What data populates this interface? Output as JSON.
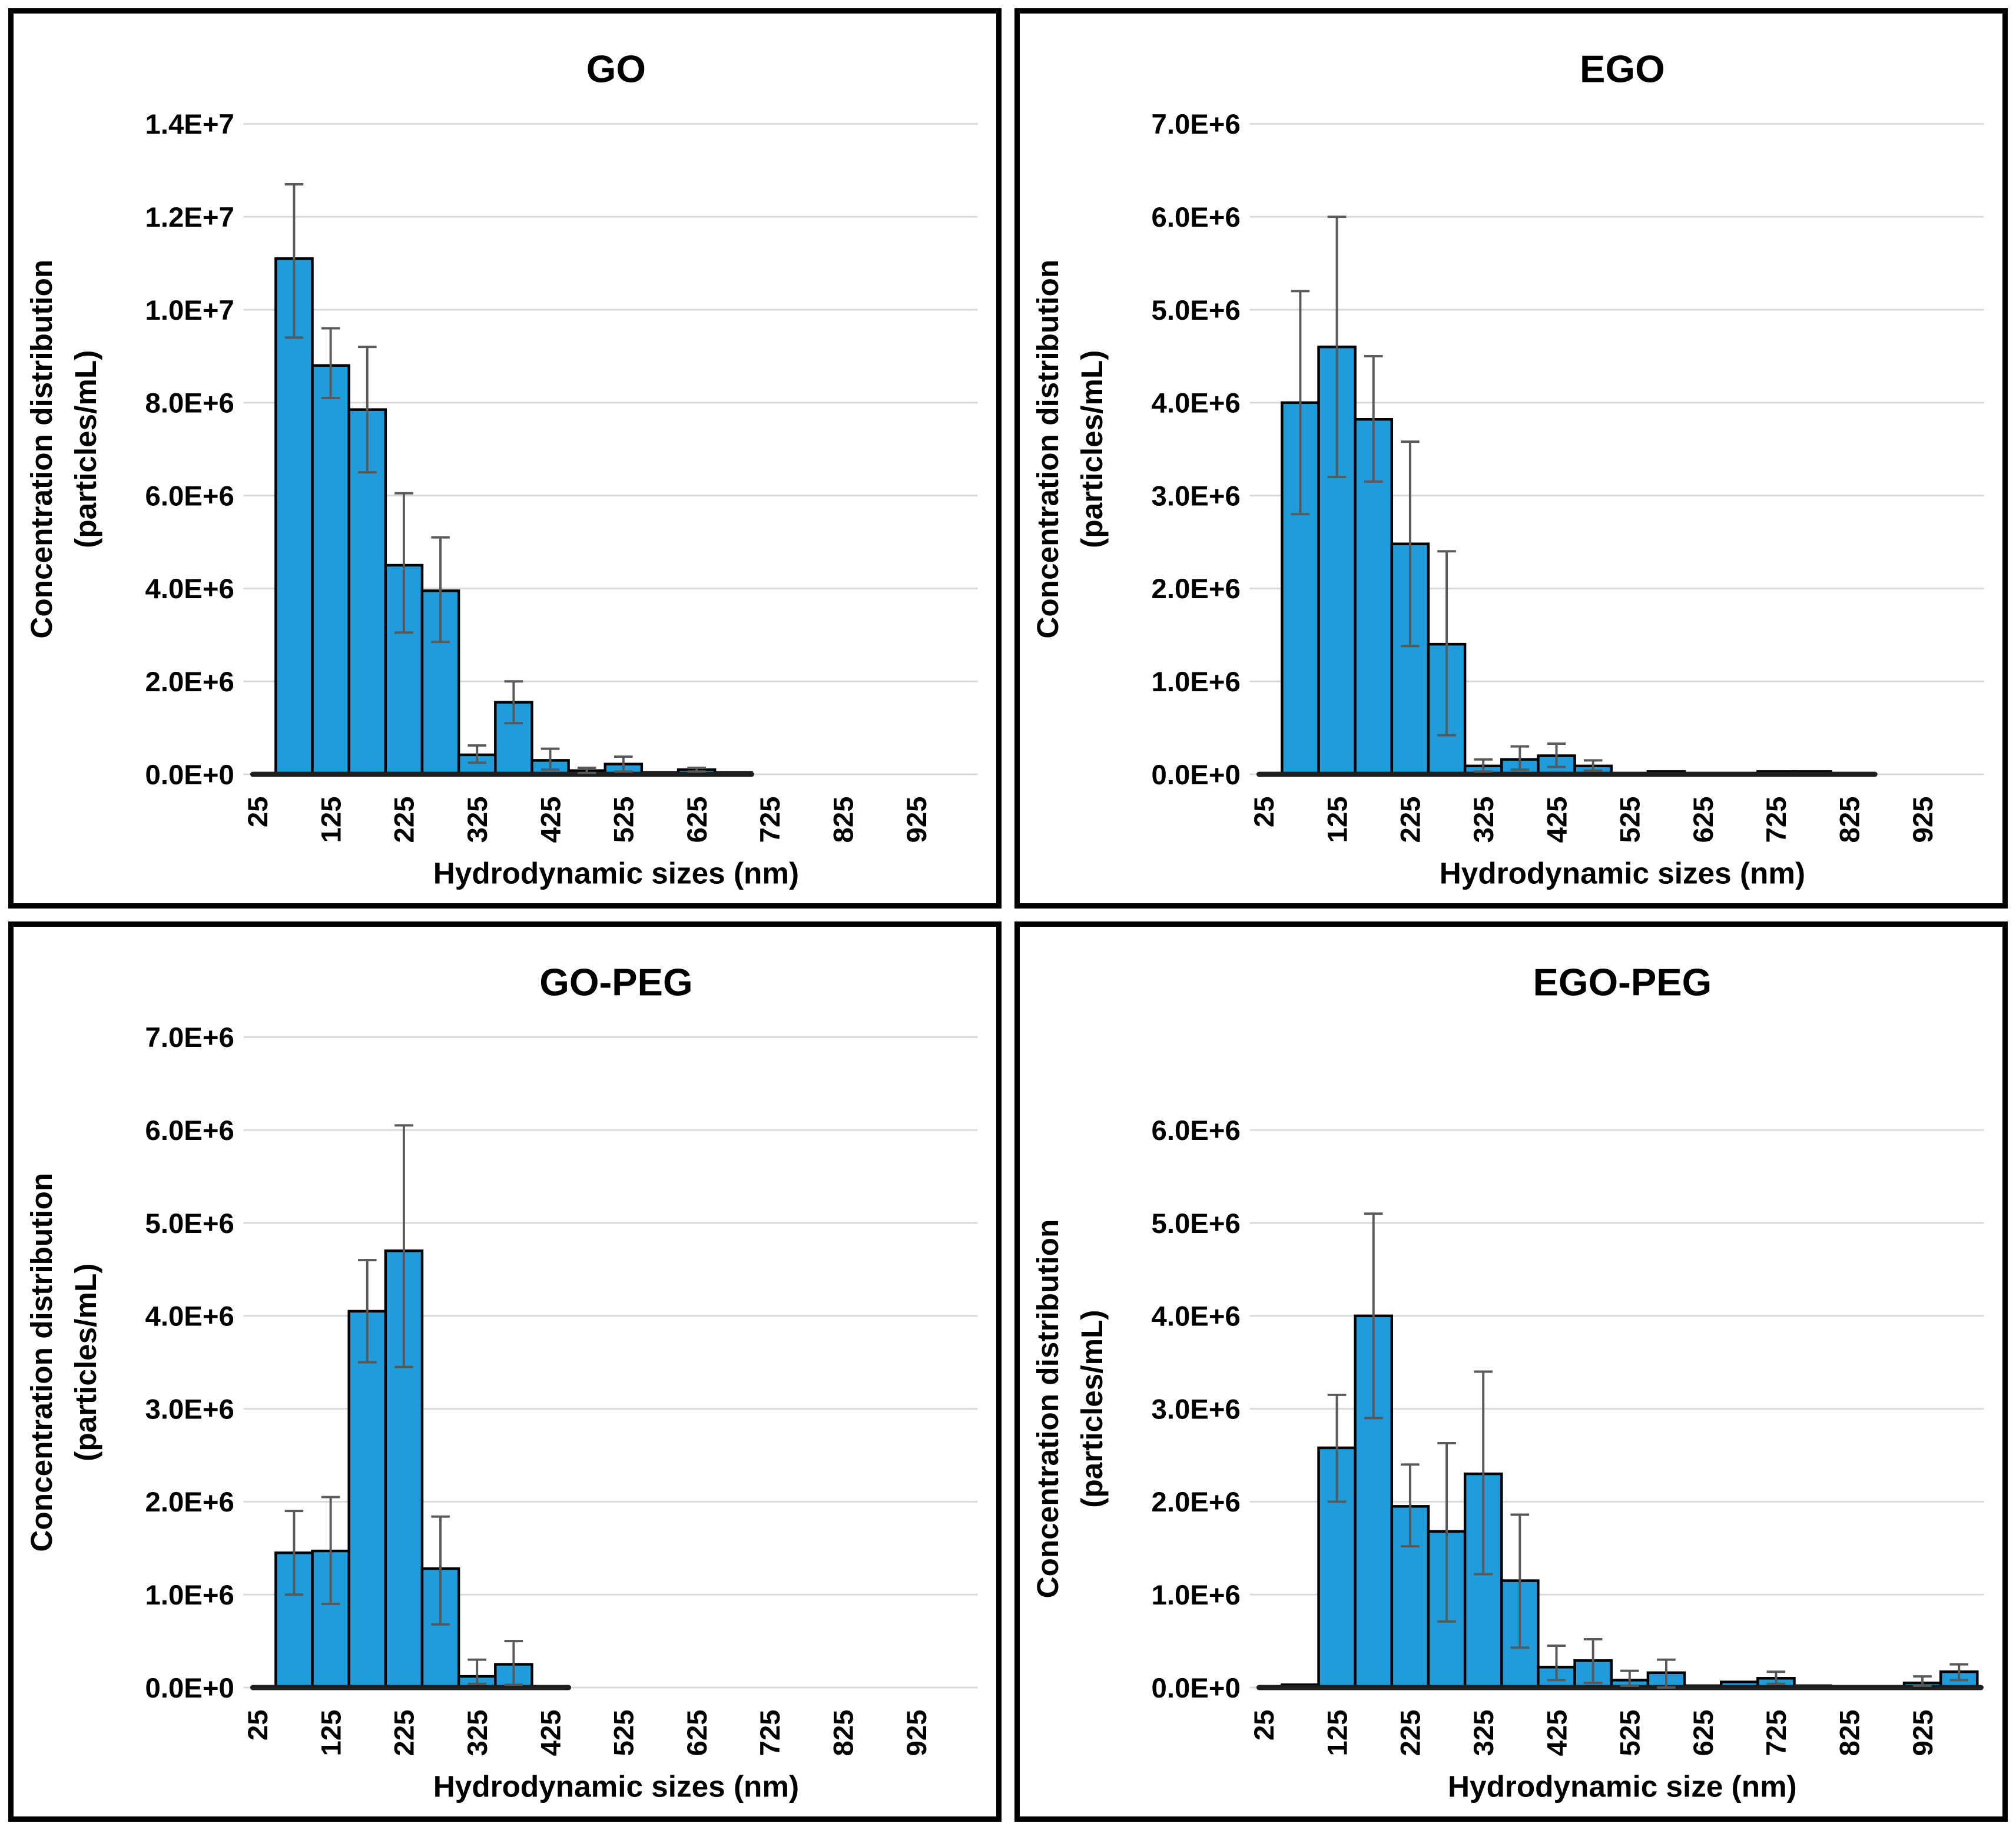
{
  "page": {
    "background": "#ffffff"
  },
  "style": {
    "bar_fill": "#1F9CD9",
    "bar_stroke": "#000000",
    "error_color": "#595959",
    "grid_color": "#D9D9D9",
    "axis_color": "#1F1F1F",
    "text_color": "#000000",
    "panel_border": "#000000"
  },
  "chart_data": [
    {
      "type": "bar",
      "title": "GO",
      "xlabel": "Hydrodynamic sizes (nm)",
      "ylabel_line1": "Concentration distribution",
      "ylabel_line2": "(particles/mL)",
      "ylim": 14000000,
      "ytick_labels": [
        "0.0E+0",
        "2.0E+6",
        "4.0E+6",
        "6.0E+6",
        "8.0E+6",
        "1.0E+7",
        "1.2E+7",
        "1.4E+7"
      ],
      "xticks": [
        25,
        125,
        225,
        325,
        425,
        525,
        625,
        725,
        825,
        925
      ],
      "bin_centers": [
        75,
        125,
        175,
        225,
        275,
        325,
        375,
        425,
        475,
        525,
        575,
        625,
        675,
        725,
        775,
        825,
        875,
        925,
        975
      ],
      "values": [
        11100000,
        8800000,
        7850000,
        4500000,
        3950000,
        420000,
        1550000,
        300000,
        80000,
        220000,
        40000,
        100000,
        40000,
        0,
        0,
        0,
        0,
        0,
        0
      ],
      "err_low": [
        9400000,
        8100000,
        6500000,
        3050000,
        2850000,
        250000,
        1100000,
        100000,
        30000,
        60000,
        null,
        60000,
        null,
        null,
        null,
        null,
        null,
        null,
        null
      ],
      "err_high": [
        12700000,
        9600000,
        9200000,
        6050000,
        5100000,
        620000,
        2000000,
        550000,
        140000,
        380000,
        null,
        140000,
        null,
        null,
        null,
        null,
        null,
        null,
        null
      ],
      "axis_line_end_nm": 700,
      "grid": "horizontal",
      "legend": "none"
    },
    {
      "type": "bar",
      "title": "EGO",
      "xlabel": "Hydrodynamic sizes (nm)",
      "ylabel_line1": "Concentration distribution",
      "ylabel_line2": "(particles/mL)",
      "ylim": 7000000,
      "ytick_labels": [
        "0.0E+0",
        "1.0E+6",
        "2.0E+6",
        "3.0E+6",
        "4.0E+6",
        "5.0E+6",
        "6.0E+6",
        "7.0E+6"
      ],
      "xticks": [
        25,
        125,
        225,
        325,
        425,
        525,
        625,
        725,
        825,
        925
      ],
      "bin_centers": [
        75,
        125,
        175,
        225,
        275,
        325,
        375,
        425,
        475,
        525,
        575,
        625,
        675,
        725,
        775,
        825,
        875,
        925,
        975
      ],
      "values": [
        4000000,
        4600000,
        3820000,
        2480000,
        1400000,
        90000,
        160000,
        200000,
        90000,
        0,
        30000,
        0,
        0,
        30000,
        30000,
        0,
        0,
        0,
        0
      ],
      "err_low": [
        2800000,
        3200000,
        3150000,
        1380000,
        420000,
        30000,
        50000,
        80000,
        40000,
        null,
        null,
        null,
        null,
        null,
        null,
        null,
        null,
        null,
        null
      ],
      "err_high": [
        5200000,
        6000000,
        4500000,
        3580000,
        2400000,
        160000,
        300000,
        330000,
        150000,
        null,
        null,
        null,
        null,
        null,
        null,
        null,
        null,
        null,
        null
      ],
      "axis_line_end_nm": 860,
      "grid": "horizontal",
      "legend": "none"
    },
    {
      "type": "bar",
      "title": "GO-PEG",
      "xlabel": "Hydrodynamic sizes (nm)",
      "ylabel_line1": "Concentration distribution",
      "ylabel_line2": "(particles/mL)",
      "ylim": 7000000,
      "ytick_labels": [
        "0.0E+0",
        "1.0E+6",
        "2.0E+6",
        "3.0E+6",
        "4.0E+6",
        "5.0E+6",
        "6.0E+6",
        "7.0E+6"
      ],
      "xticks": [
        25,
        125,
        225,
        325,
        425,
        525,
        625,
        725,
        825,
        925
      ],
      "bin_centers": [
        75,
        125,
        175,
        225,
        275,
        325,
        375,
        425,
        475,
        525,
        575,
        625,
        675,
        725,
        775,
        825,
        875,
        925,
        975
      ],
      "values": [
        1450000,
        1470000,
        4050000,
        4700000,
        1280000,
        120000,
        250000,
        0,
        0,
        0,
        0,
        0,
        0,
        0,
        0,
        0,
        0,
        0,
        0
      ],
      "err_low": [
        1000000,
        900000,
        3500000,
        3450000,
        680000,
        40000,
        30000,
        null,
        null,
        null,
        null,
        null,
        null,
        null,
        null,
        null,
        null,
        null,
        null
      ],
      "err_high": [
        1900000,
        2050000,
        4600000,
        6050000,
        1840000,
        300000,
        500000,
        null,
        null,
        null,
        null,
        null,
        null,
        null,
        null,
        null,
        null,
        null,
        null
      ],
      "axis_line_end_nm": 450,
      "grid": "horizontal",
      "legend": "none"
    },
    {
      "type": "bar",
      "title": "EGO-PEG",
      "xlabel": "Hydrodynamic size (nm)",
      "ylabel_line1": "Concentration distribution",
      "ylabel_line2": "(particles/mL)",
      "ylim": 6000000,
      "ytick_labels": [
        "0.0E+0",
        "1.0E+6",
        "2.0E+6",
        "3.0E+6",
        "4.0E+6",
        "5.0E+6",
        "6.0E+6"
      ],
      "xticks": [
        25,
        125,
        225,
        325,
        425,
        525,
        625,
        725,
        825,
        925
      ],
      "bin_centers": [
        75,
        125,
        175,
        225,
        275,
        325,
        375,
        425,
        475,
        525,
        575,
        625,
        675,
        725,
        775,
        825,
        875,
        925,
        975
      ],
      "values": [
        30000,
        2580000,
        4000000,
        1950000,
        1680000,
        2300000,
        1150000,
        220000,
        290000,
        80000,
        160000,
        20000,
        60000,
        100000,
        20000,
        10000,
        10000,
        50000,
        170000
      ],
      "err_low": [
        null,
        2000000,
        2900000,
        1520000,
        710000,
        1220000,
        430000,
        80000,
        50000,
        20000,
        0,
        null,
        null,
        40000,
        null,
        null,
        null,
        20000,
        80000
      ],
      "err_high": [
        null,
        3150000,
        5100000,
        2400000,
        2630000,
        3400000,
        1860000,
        450000,
        520000,
        180000,
        300000,
        null,
        null,
        170000,
        null,
        null,
        null,
        120000,
        250000
      ],
      "axis_line_end_nm": 1005,
      "grid": "horizontal",
      "legend": "none"
    }
  ]
}
